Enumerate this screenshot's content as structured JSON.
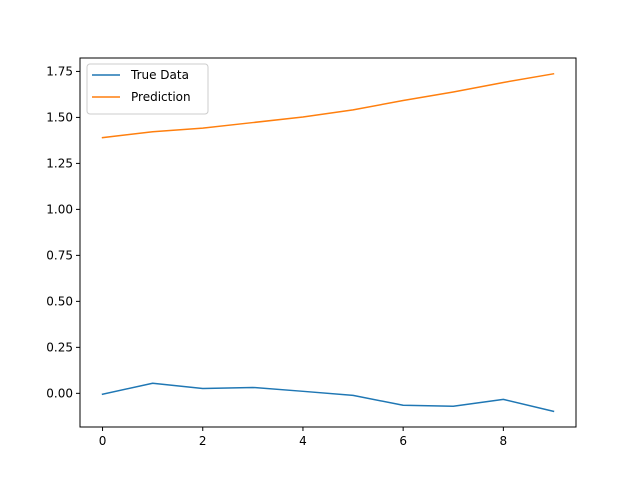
{
  "chart_data": {
    "type": "line",
    "title": "",
    "xlabel": "",
    "ylabel": "",
    "x": [
      0,
      1,
      2,
      3,
      4,
      5,
      6,
      7,
      8,
      9
    ],
    "xlim": [
      -0.45,
      9.45
    ],
    "ylim": [
      -0.183,
      1.823
    ],
    "xticks": [
      0,
      2,
      4,
      6,
      8
    ],
    "xtick_labels": [
      "0",
      "2",
      "4",
      "6",
      "8"
    ],
    "yticks": [
      0.0,
      0.25,
      0.5,
      0.75,
      1.0,
      1.25,
      1.5,
      1.75
    ],
    "ytick_labels": [
      "0.00",
      "0.25",
      "0.50",
      "0.75",
      "1.00",
      "1.25",
      "1.50",
      "1.75"
    ],
    "grid": false,
    "legend_position": "top-left",
    "series": [
      {
        "name": "True Data",
        "color": "#1f77b4",
        "values": [
          -0.005,
          0.055,
          0.026,
          0.032,
          0.011,
          -0.011,
          -0.065,
          -0.07,
          -0.033,
          -0.098
        ]
      },
      {
        "name": "Prediction",
        "color": "#ff7f0e",
        "values": [
          1.39,
          1.422,
          1.442,
          1.472,
          1.502,
          1.541,
          1.592,
          1.638,
          1.69,
          1.737
        ]
      }
    ]
  }
}
